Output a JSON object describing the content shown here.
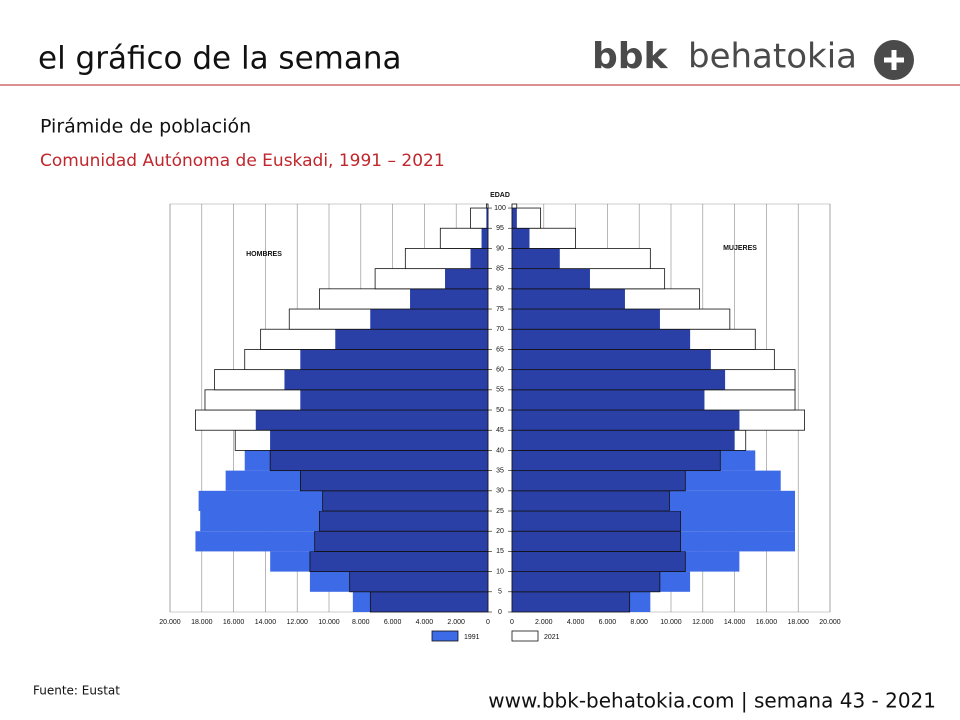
{
  "header": {
    "title": "el gráfico de la semana",
    "logo_brand": "bbk",
    "logo_name": "behatokia"
  },
  "chart_data": {
    "type": "pyramid",
    "title": "Pirámide de población",
    "subtitle": "Comunidad Autónoma de Euskadi, 1991 – 2021",
    "y_label": "EDAD",
    "ages": [
      0,
      5,
      10,
      15,
      20,
      25,
      30,
      35,
      40,
      45,
      50,
      55,
      60,
      65,
      70,
      75,
      80,
      85,
      90,
      95,
      100
    ],
    "ylim": [
      0,
      101
    ],
    "yticks": [
      0,
      5,
      10,
      15,
      20,
      25,
      30,
      35,
      40,
      45,
      50,
      55,
      60,
      65,
      70,
      75,
      80,
      85,
      90,
      95,
      100
    ],
    "xlim": [
      0,
      20000
    ],
    "xticks": [
      {
        "value": 0,
        "label": "0"
      },
      {
        "value": 2000,
        "label": "2.000"
      },
      {
        "value": 4000,
        "label": "4.000"
      },
      {
        "value": 6000,
        "label": "6.000"
      },
      {
        "value": 8000,
        "label": "8.000"
      },
      {
        "value": 10000,
        "label": "10.000"
      },
      {
        "value": 12000,
        "label": "12.000"
      },
      {
        "value": 14000,
        "label": "14.000"
      },
      {
        "value": 16000,
        "label": "16.000"
      },
      {
        "value": 18000,
        "label": "18.000"
      },
      {
        "value": 20000,
        "label": "20.000"
      }
    ],
    "grid": true,
    "overlap_color": "#2b40a6",
    "groups": [
      {
        "label": "HOMBRES",
        "side": "left",
        "series": [
          {
            "name": "1991",
            "color": "#3d6ae6",
            "values": [
              8500,
              11200,
              13700,
              18400,
              18100,
              18200,
              16500,
              15300,
              13700,
              14600,
              11800,
              12800,
              11800,
              9600,
              7400,
              4900,
              2700,
              1100,
              400,
              100,
              0
            ]
          },
          {
            "name": "2021",
            "color": "#ffffff",
            "values": [
              7400,
              8700,
              11200,
              10900,
              10600,
              10400,
              11800,
              13700,
              15900,
              18400,
              17800,
              17200,
              15300,
              14300,
              12500,
              10600,
              7100,
              5200,
              3000,
              1100,
              100
            ]
          }
        ]
      },
      {
        "label": "MUJERES",
        "side": "right",
        "series": [
          {
            "name": "1991",
            "color": "#3d6ae6",
            "values": [
              8700,
              11200,
              14300,
              17800,
              17800,
              17800,
              16900,
              15300,
              14000,
              14300,
              12100,
              13400,
              12500,
              11200,
              9300,
              7100,
              4900,
              3000,
              1100,
              300,
              0
            ]
          },
          {
            "name": "2021",
            "color": "#ffffff",
            "values": [
              7400,
              9300,
              10900,
              10600,
              10600,
              9900,
              10900,
              13100,
              14700,
              18400,
              17800,
              17800,
              16500,
              15300,
              13700,
              11800,
              9600,
              8700,
              4000,
              1800,
              300
            ]
          }
        ]
      }
    ],
    "source": "Fuente: Eustat"
  },
  "footer": {
    "text": "www.bbk-behatokia.com | semana 43 - 2021"
  }
}
